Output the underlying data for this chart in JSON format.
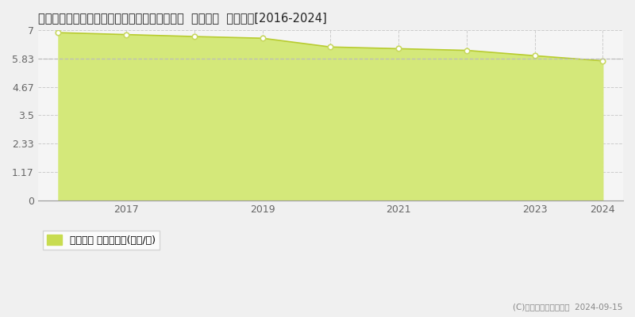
{
  "title": "栃木県栃木市西方町金崎字木ノ下２８８番１外  地価公示  地価推移[2016-2024]",
  "years": [
    2016,
    2017,
    2018,
    2019,
    2020,
    2021,
    2022,
    2023,
    2024
  ],
  "values": [
    6.9,
    6.82,
    6.74,
    6.67,
    6.31,
    6.24,
    6.17,
    5.95,
    5.74
  ],
  "yticks": [
    0,
    1.17,
    2.33,
    3.5,
    4.67,
    5.83,
    7
  ],
  "ymin": 0,
  "ymax": 7,
  "xmin": 2015.7,
  "xmax": 2024.3,
  "fill_color": "#d4e87a",
  "fill_alpha": 1.0,
  "line_color": "#b8cc30",
  "marker_face_color": "white",
  "marker_edge_color": "#c8d860",
  "grid_color": "#cccccc",
  "bg_color": "#f5f5f5",
  "fig_bg_color": "#f0f0f0",
  "dashed_line_value": 5.83,
  "dashed_line_color": "#bbbbbb",
  "legend_label": "地価公示 平均坪単価(万円/坪)",
  "legend_square_color": "#c8dc50",
  "copyright_text": "(C)土地価格ドットコム  2024-09-15",
  "xtick_labels": [
    "2017",
    "2019",
    "2021",
    "2023",
    "2024"
  ],
  "xtick_positions": [
    2017,
    2019,
    2021,
    2023,
    2024
  ],
  "vline_positions": [
    2017,
    2018,
    2019,
    2020,
    2021,
    2022,
    2023,
    2024
  ],
  "title_fontsize": 10.5,
  "axis_fontsize": 9,
  "legend_fontsize": 9
}
